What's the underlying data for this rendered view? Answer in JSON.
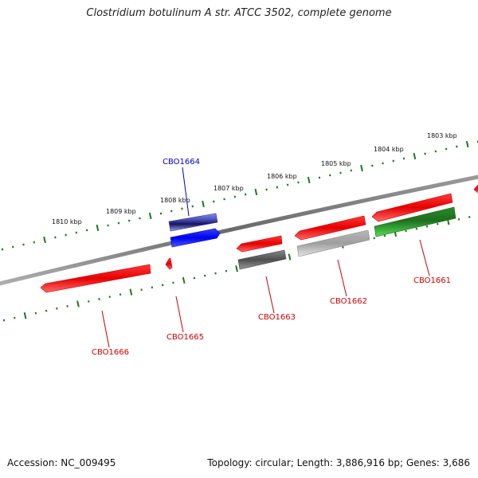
{
  "title": "Clostridium botulinum A str. ATCC 3502, complete genome",
  "footer": {
    "accession": "Accession: NC_009495",
    "summary": "Topology: circular; Length: 3,886,916 bp; Genes: 3,686"
  },
  "colors": {
    "backbone": "#808080",
    "ticks": "#1a7a1a",
    "gene_red": "#ff0000",
    "gene_blue": "#0000ff",
    "gene_green": "#33b033",
    "gene_gray": "#aaaaaa",
    "label_red": "#cc0000",
    "label_blue": "#0000cc"
  },
  "kbp_ticks": [
    "1810 kbp",
    "1809 kbp",
    "1808 kbp",
    "1807 kbp",
    "1806 kbp",
    "1805 kbp",
    "1804 kbp",
    "1803 kbp"
  ],
  "genes": [
    {
      "id": "CBO1666",
      "color": "red",
      "strand": "minus"
    },
    {
      "id": "CBO1665",
      "color": "red",
      "strand": "minus"
    },
    {
      "id": "CBO1664",
      "color": "blue",
      "strand": "plus"
    },
    {
      "id": "CBO1663",
      "color": "red",
      "strand": "minus"
    },
    {
      "id": "CBO1662",
      "color": "red",
      "strand": "minus"
    },
    {
      "id": "CBO1661",
      "color": "red",
      "strand": "minus"
    }
  ]
}
